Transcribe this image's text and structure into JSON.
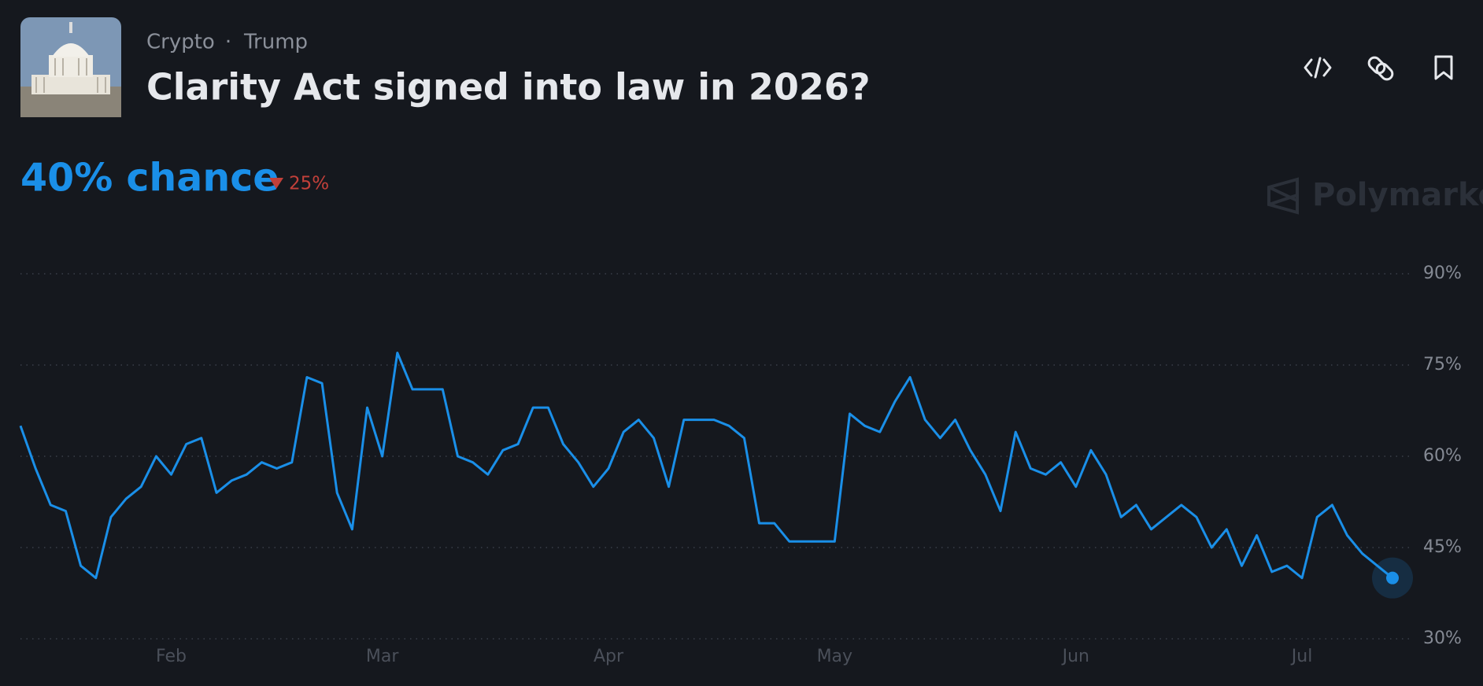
{
  "header": {
    "tags": [
      "Crypto",
      "Trump"
    ],
    "separator": "·",
    "title": "Clarity Act signed into law in 2026?",
    "headline": "40% chance",
    "change": "25%",
    "brand": "Polymarket"
  },
  "chart_data": {
    "type": "line",
    "categories": [
      null,
      null,
      null,
      null,
      null,
      null,
      null,
      null,
      null,
      null,
      "Feb",
      null,
      null,
      null,
      null,
      null,
      null,
      null,
      null,
      null,
      null,
      null,
      null,
      null,
      "Mar",
      null,
      null,
      null,
      null,
      null,
      null,
      null,
      null,
      null,
      null,
      null,
      null,
      null,
      null,
      "Apr",
      null,
      null,
      null,
      null,
      null,
      null,
      null,
      null,
      null,
      null,
      null,
      null,
      null,
      null,
      "May",
      null,
      null,
      null,
      null,
      null,
      null,
      null,
      null,
      null,
      null,
      null,
      null,
      null,
      null,
      null,
      "Jun",
      null,
      null,
      null,
      null,
      null,
      null,
      null,
      null,
      null,
      null,
      null,
      null,
      null,
      null,
      "Jul",
      null,
      null,
      null,
      null,
      null,
      null
    ],
    "series": [
      {
        "color": "#1a8fe8",
        "values": [
          65,
          58,
          52,
          51,
          42,
          40,
          50,
          53,
          55,
          60,
          57,
          62,
          63,
          54,
          56,
          57,
          59,
          58,
          59,
          73,
          72,
          54,
          48,
          68,
          60,
          77,
          71,
          71,
          71,
          60,
          59,
          57,
          61,
          62,
          68,
          68,
          62,
          59,
          55,
          58,
          64,
          66,
          63,
          55,
          66,
          66,
          66,
          65,
          63,
          49,
          49,
          46,
          46,
          46,
          46,
          67,
          65,
          64,
          69,
          73,
          66,
          63,
          66,
          61,
          57,
          51,
          64,
          58,
          57,
          59,
          55,
          61,
          57,
          50,
          52,
          48,
          50,
          52,
          50,
          45,
          48,
          42,
          47,
          41,
          42,
          40,
          50,
          52,
          47,
          44,
          42,
          40
        ]
      }
    ],
    "ylim": [
      30,
      90
    ],
    "yticks": [
      {
        "value": 30,
        "label": "30%"
      },
      {
        "value": 45,
        "label": "45%"
      },
      {
        "value": 60,
        "label": "60%"
      },
      {
        "value": 75,
        "label": "75%"
      },
      {
        "value": 90,
        "label": "90%"
      }
    ],
    "grid": true
  }
}
